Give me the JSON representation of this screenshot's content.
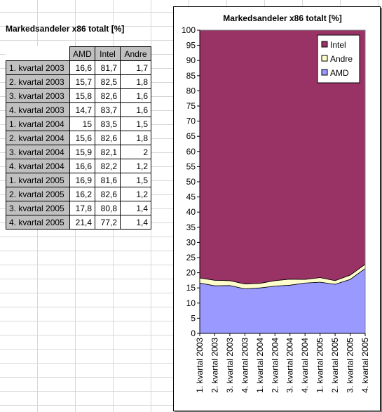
{
  "sheet": {
    "title": "Markedsandeler x86 totalt [%]",
    "table": {
      "headers": [
        "",
        "AMD",
        "Intel",
        "Andre"
      ],
      "rows": [
        [
          "1. kvartal 2003",
          "16,6",
          "81,7",
          "1,7"
        ],
        [
          "2. kvartal 2003",
          "15,7",
          "82,5",
          "1,8"
        ],
        [
          "3. kvartal 2003",
          "15,8",
          "82,6",
          "1,6"
        ],
        [
          "4. kvartal 2003",
          "14,7",
          "83,7",
          "1,6"
        ],
        [
          "1. kvartal 2004",
          "15",
          "83,5",
          "1,5"
        ],
        [
          "2. kvartal 2004",
          "15,6",
          "82,6",
          "1,8"
        ],
        [
          "3. kvartal 2004",
          "15,9",
          "82,1",
          "2"
        ],
        [
          "4. kvartal 2004",
          "16,6",
          "82,2",
          "1,2"
        ],
        [
          "1. kvartal 2005",
          "16,9",
          "81,6",
          "1,5"
        ],
        [
          "2. kvartal 2005",
          "16,2",
          "82,6",
          "1,2"
        ],
        [
          "3. kvartal 2005",
          "17,8",
          "80,8",
          "1,4"
        ],
        [
          "4. kvartal 2005",
          "21,4",
          "77,2",
          "1,4"
        ]
      ]
    }
  },
  "chart_data": {
    "type": "area",
    "stacked": true,
    "title": "Markedsandeler x86 totalt [%]",
    "xlabel": "",
    "ylabel": "",
    "ylim": [
      0,
      100
    ],
    "ytick_step": 5,
    "grid": false,
    "legend_position": "top-right",
    "categories": [
      "1. kvartal 2003",
      "2. kvartal 2003",
      "3. kvartal 2003",
      "4. kvartal 2003",
      "1. kvartal 2004",
      "2. kvartal 2004",
      "3. kvartal 2004",
      "4. kvartal 2004",
      "1. kvartal 2005",
      "2. kvartal 2005",
      "3. kvartal 2005",
      "4. kvartal 2005"
    ],
    "series": [
      {
        "name": "AMD",
        "color": "#9999ff",
        "values": [
          16.6,
          15.7,
          15.8,
          14.7,
          15,
          15.6,
          15.9,
          16.6,
          16.9,
          16.2,
          17.8,
          21.4
        ]
      },
      {
        "name": "Andre",
        "color": "#ffffcc",
        "values": [
          1.7,
          1.8,
          1.6,
          1.6,
          1.5,
          1.8,
          2,
          1.2,
          1.5,
          1.2,
          1.4,
          1.4
        ]
      },
      {
        "name": "Intel",
        "color": "#993366",
        "values": [
          81.7,
          82.5,
          82.6,
          83.7,
          83.5,
          82.6,
          82.1,
          82.2,
          81.6,
          82.6,
          80.8,
          77.2
        ]
      }
    ],
    "legend_order": [
      "Intel",
      "Andre",
      "AMD"
    ]
  }
}
